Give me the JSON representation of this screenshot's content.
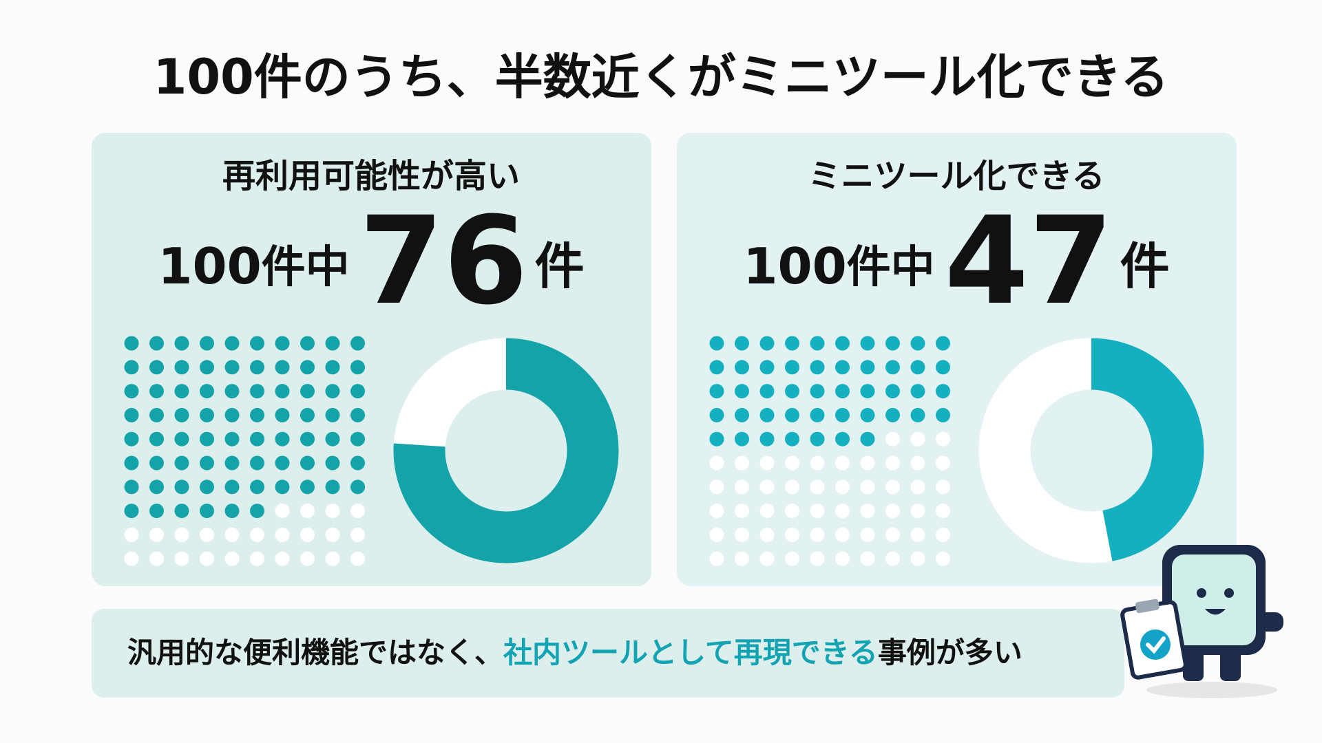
{
  "title": "100件のうち、半数近くがミニツール化できる",
  "chart_data": [
    {
      "type": "waffle",
      "subtitle": "再利用可能性が高い",
      "total": 100,
      "total_suffix": "件中",
      "value": 76,
      "unit": "件",
      "color": "#13a3a8",
      "background": "#dcefec"
    },
    {
      "type": "waffle",
      "subtitle": "ミニツール化できる",
      "total": 100,
      "total_suffix": "件中",
      "value": 47,
      "unit": "件",
      "color": "#14b0bf",
      "background": "#e2f2f3"
    }
  ],
  "footer": {
    "parts": [
      "汎用的な便利機能ではなく、",
      "社内ツールとして再現できる",
      "事例が多い"
    ]
  }
}
